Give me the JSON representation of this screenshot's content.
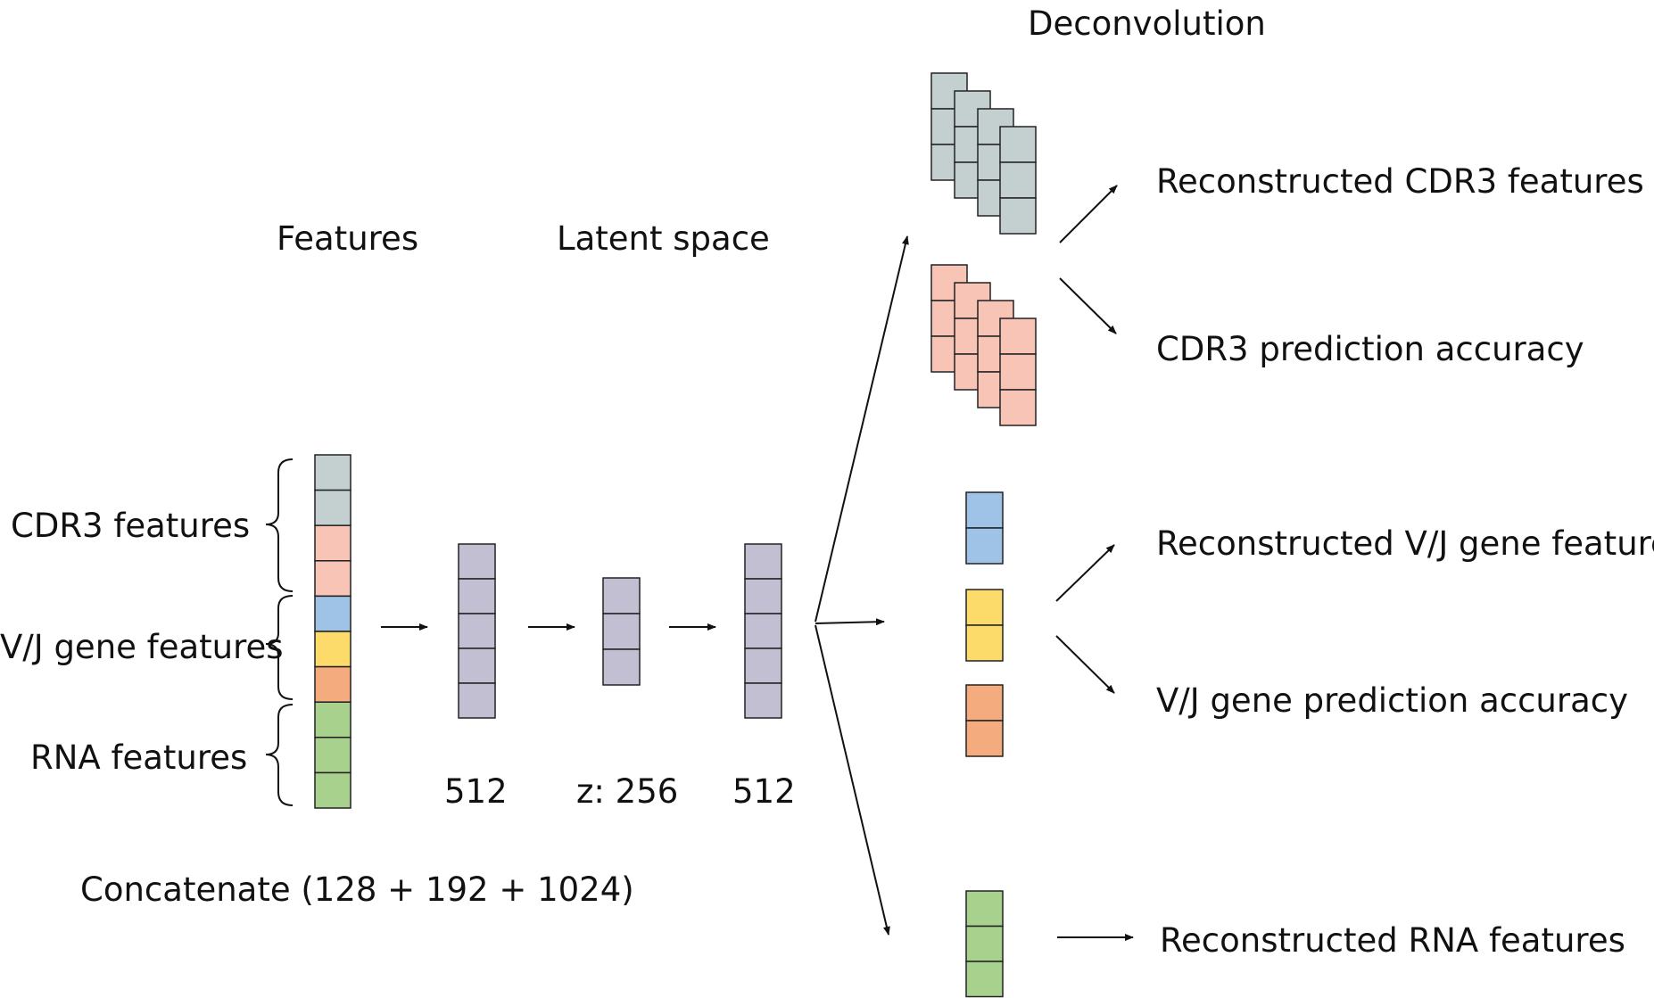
{
  "labels": {
    "deconvolution": "Deconvolution",
    "features": "Features",
    "latent_space": "Latent space",
    "cdr3_features": "CDR3 features",
    "vj_gene_features": "V/J gene features",
    "rna_features": "RNA features",
    "enc_dim": "512",
    "latent_dim": "z: 256",
    "dec_dim": "512",
    "concatenate": "Concatenate (128 + 192 + 1024)",
    "out_cdr3_reconstructed": "Reconstructed CDR3 features",
    "out_cdr3_accuracy": "CDR3 prediction accuracy",
    "out_vj_reconstructed": "Reconstructed V/J gene features",
    "out_vj_accuracy": "V/J gene prediction accuracy",
    "out_rna_reconstructed": "Reconstructed RNA features"
  },
  "colors": {
    "cdr3_block": "#c4d0cf",
    "cdr3_accuracy_block": "#f7c4b5",
    "v_gene_block": "#9fc3e7",
    "j_gene_block": "#fcdb6b",
    "vj_orange_block": "#f4ac7f",
    "rna_block": "#a9d18e",
    "latent_block": "#c2bfd2"
  }
}
